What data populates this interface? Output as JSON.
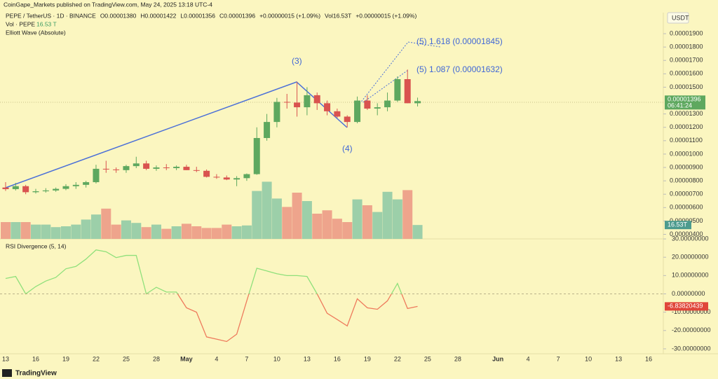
{
  "header": {
    "publisher": "CoinGape_Markets published on TradingView.com, May 24, 2025 13:18 UTC-4",
    "legend": [
      "PEPE / TetherUS · 1D · BINANCE",
      "O0.00001380",
      "H0.00001422",
      "L0.00001356",
      "C0.00001396",
      "+0.00000015 (+1.09%)",
      "Vol16.53T",
      "+0.00000015 (+1.09%)"
    ],
    "vol_name": "Vol · PEPE",
    "vol_value": "16.53 T",
    "indicator": "Elliott Wave (Absolute)",
    "currency": "USDT"
  },
  "chart_data": [
    {
      "type": "candlestick",
      "categories": [
        "13",
        null,
        null,
        "16",
        null,
        null,
        "19",
        null,
        null,
        "22",
        null,
        null,
        "25",
        null,
        null,
        "28",
        null,
        null,
        "May",
        null,
        null,
        "4",
        null,
        null,
        "7",
        null,
        null,
        "10",
        null,
        null,
        "13",
        null,
        null,
        "16",
        null,
        null,
        "19",
        null,
        null,
        "22",
        null,
        null
      ],
      "xticks_after": [
        "25",
        "28",
        "Jun",
        "4",
        "7",
        "10",
        "13",
        "16"
      ],
      "open": [
        7.5e-06,
        7.38e-06,
        7.6e-06,
        7.15e-06,
        7.22e-06,
        7.28e-06,
        7.4e-06,
        7.6e-06,
        7.7e-06,
        7.9e-06,
        8.9e-06,
        8.85e-06,
        8.8e-06,
        9.1e-06,
        9.3e-06,
        8.9e-06,
        9e-06,
        8.95e-06,
        9.05e-06,
        8.8e-06,
        8.75e-06,
        8.3e-06,
        8.25e-06,
        8.1e-06,
        8.2e-06,
        8.5e-06,
        1.12e-05,
        1.24e-05,
        1.39e-05,
        1.385e-05,
        1.35e-05,
        1.44e-05,
        1.38e-05,
        1.32e-05,
        1.28e-05,
        1.24e-05,
        1.4e-05,
        1.34e-05,
        1.35e-05,
        1.4e-05,
        1.56e-05,
        1.38e-05
      ],
      "high": [
        7.9e-06,
        7.85e-06,
        7.7e-06,
        7.4e-06,
        7.45e-06,
        7.5e-06,
        7.75e-06,
        7.9e-06,
        8e-06,
        9.2e-06,
        9.5e-06,
        9e-06,
        9.2e-06,
        9.8e-06,
        9.5e-06,
        9.15e-06,
        9.25e-06,
        9.15e-06,
        9.2e-06,
        9.05e-06,
        8.85e-06,
        8.5e-06,
        8.4e-06,
        8.35e-06,
        8.55e-06,
        1.2e-05,
        1.3e-05,
        1.42e-05,
        1.45e-05,
        1.54e-05,
        1.5e-05,
        1.46e-05,
        1.4e-05,
        1.34e-05,
        1.29e-05,
        1.43e-05,
        1.44e-05,
        1.38e-05,
        1.46e-05,
        1.58e-05,
        1.632e-05,
        1.422e-05
      ],
      "low": [
        7.25e-06,
        7.28e-06,
        7e-06,
        7.05e-06,
        7.12e-06,
        7.18e-06,
        7.3e-06,
        7.4e-06,
        7.5e-06,
        7.8e-06,
        8.6e-06,
        8.6e-06,
        8.6e-06,
        8.95e-06,
        8.8e-06,
        8.75e-06,
        8.8e-06,
        8.8e-06,
        8.8e-06,
        8.65e-06,
        8.25e-06,
        8.15e-06,
        8.05e-06,
        7.6e-06,
        8e-06,
        8.45e-06,
        1.1e-05,
        1.2e-05,
        1.34e-05,
        1.28e-05,
        1.29e-05,
        1.33e-05,
        1.29e-05,
        1.27e-05,
        1.2e-05,
        1.23e-05,
        1.33e-05,
        1.29e-05,
        1.32e-05,
        1.39e-05,
        1.38e-05,
        1.356e-05
      ],
      "close": [
        7.38e-06,
        7.6e-06,
        7.15e-06,
        7.22e-06,
        7.28e-06,
        7.4e-06,
        7.6e-06,
        7.7e-06,
        7.9e-06,
        8.9e-06,
        8.85e-06,
        8.8e-06,
        9.1e-06,
        9.3e-06,
        8.9e-06,
        9e-06,
        8.95e-06,
        9.05e-06,
        8.8e-06,
        8.75e-06,
        8.3e-06,
        8.25e-06,
        8.1e-06,
        8.2e-06,
        8.5e-06,
        1.12e-05,
        1.24e-05,
        1.39e-05,
        1.385e-05,
        1.35e-05,
        1.44e-05,
        1.38e-05,
        1.32e-05,
        1.28e-05,
        1.24e-05,
        1.4e-05,
        1.34e-05,
        1.35e-05,
        1.4e-05,
        1.56e-05,
        1.38e-05,
        1.396e-05
      ],
      "volume": [
        20,
        20,
        20,
        17,
        17,
        14,
        15,
        17,
        23,
        29,
        36,
        17,
        22,
        19,
        14,
        17,
        12,
        15,
        18,
        15,
        13,
        13,
        17,
        15,
        16,
        57,
        68,
        48,
        38,
        55,
        45,
        30,
        34,
        24,
        20,
        47,
        40,
        32,
        56,
        47,
        58,
        16.53
      ],
      "volume_labels": [
        null,
        null,
        null,
        null,
        null,
        null,
        null,
        null,
        null,
        null,
        null,
        null,
        null,
        null,
        null,
        null,
        null,
        null,
        null,
        null,
        null,
        null,
        null,
        null,
        null,
        null,
        null,
        null,
        null,
        null,
        null,
        null,
        null,
        null,
        null,
        null,
        null,
        null,
        null,
        null,
        null,
        "16.53T"
      ],
      "last_price_label": "0.00001396",
      "countdown": "06:41:24",
      "up_color": "#5ea85f",
      "down_color": "#d9534f",
      "volume_up_color": "#9ccfa9",
      "volume_down_color": "#eea48c",
      "ylim": [
        3.66e-06,
        2.047e-05
      ],
      "yticks": [
        {
          "value": 1.9e-05,
          "label": "0.00001900"
        },
        {
          "value": 1.8e-05,
          "label": "0.00001800"
        },
        {
          "value": 1.7e-05,
          "label": "0.00001700"
        },
        {
          "value": 1.6e-05,
          "label": "0.00001600"
        },
        {
          "value": 1.5e-05,
          "label": "0.00001500"
        },
        {
          "value": 1.3e-05,
          "label": "0.00001300"
        },
        {
          "value": 1.2e-05,
          "label": "0.00001200"
        },
        {
          "value": 1.1e-05,
          "label": "0.00001100"
        },
        {
          "value": 1e-05,
          "label": "0.00001000"
        },
        {
          "value": 9e-06,
          "label": "0.00000900"
        },
        {
          "value": 8e-06,
          "label": "0.00000800"
        },
        {
          "value": 7e-06,
          "label": "0.00000700"
        },
        {
          "value": 6e-06,
          "label": "0.00000600"
        },
        {
          "value": 5e-06,
          "label": "0.00000500"
        },
        {
          "value": 4e-06,
          "label": "0.00000400"
        }
      ],
      "annotations": [
        "(3)",
        "(4)",
        "(5) 1.618 (0.00001845)",
        "(5) 1.087 (0.00001632)"
      ]
    },
    {
      "type": "line",
      "title": "RSI Divergence (5, 14)",
      "values": [
        8.4,
        9.5,
        0,
        4,
        7,
        9,
        13.7,
        15,
        19,
        24,
        23,
        19.8,
        21,
        21,
        0,
        3.6,
        1,
        1,
        -7.6,
        -10,
        -23.5,
        -24.7,
        -26,
        -22,
        -3.8,
        14,
        12.5,
        11,
        10,
        10,
        9.5,
        0,
        -10.6,
        -14,
        -17.5,
        -2.7,
        -7.6,
        -8.4,
        -3.8,
        5.7,
        -8,
        -6.83820439
      ],
      "up_color": "#8fe07b",
      "down_color": "#ee7a5c",
      "ylim": [
        -32.7,
        30.4
      ],
      "yticks": [
        {
          "value": 30,
          "label": "30.00000000"
        },
        {
          "value": 20,
          "label": "20.00000000"
        },
        {
          "value": 10,
          "label": "10.00000000"
        },
        {
          "value": 0,
          "label": "0.00000000"
        },
        {
          "value": -10,
          "label": "-10.00000000"
        },
        {
          "value": -20,
          "label": "-20.00000000"
        },
        {
          "value": -30,
          "label": "-30.00000000"
        }
      ]
    }
  ],
  "footer": {
    "brand": "TradingView"
  }
}
